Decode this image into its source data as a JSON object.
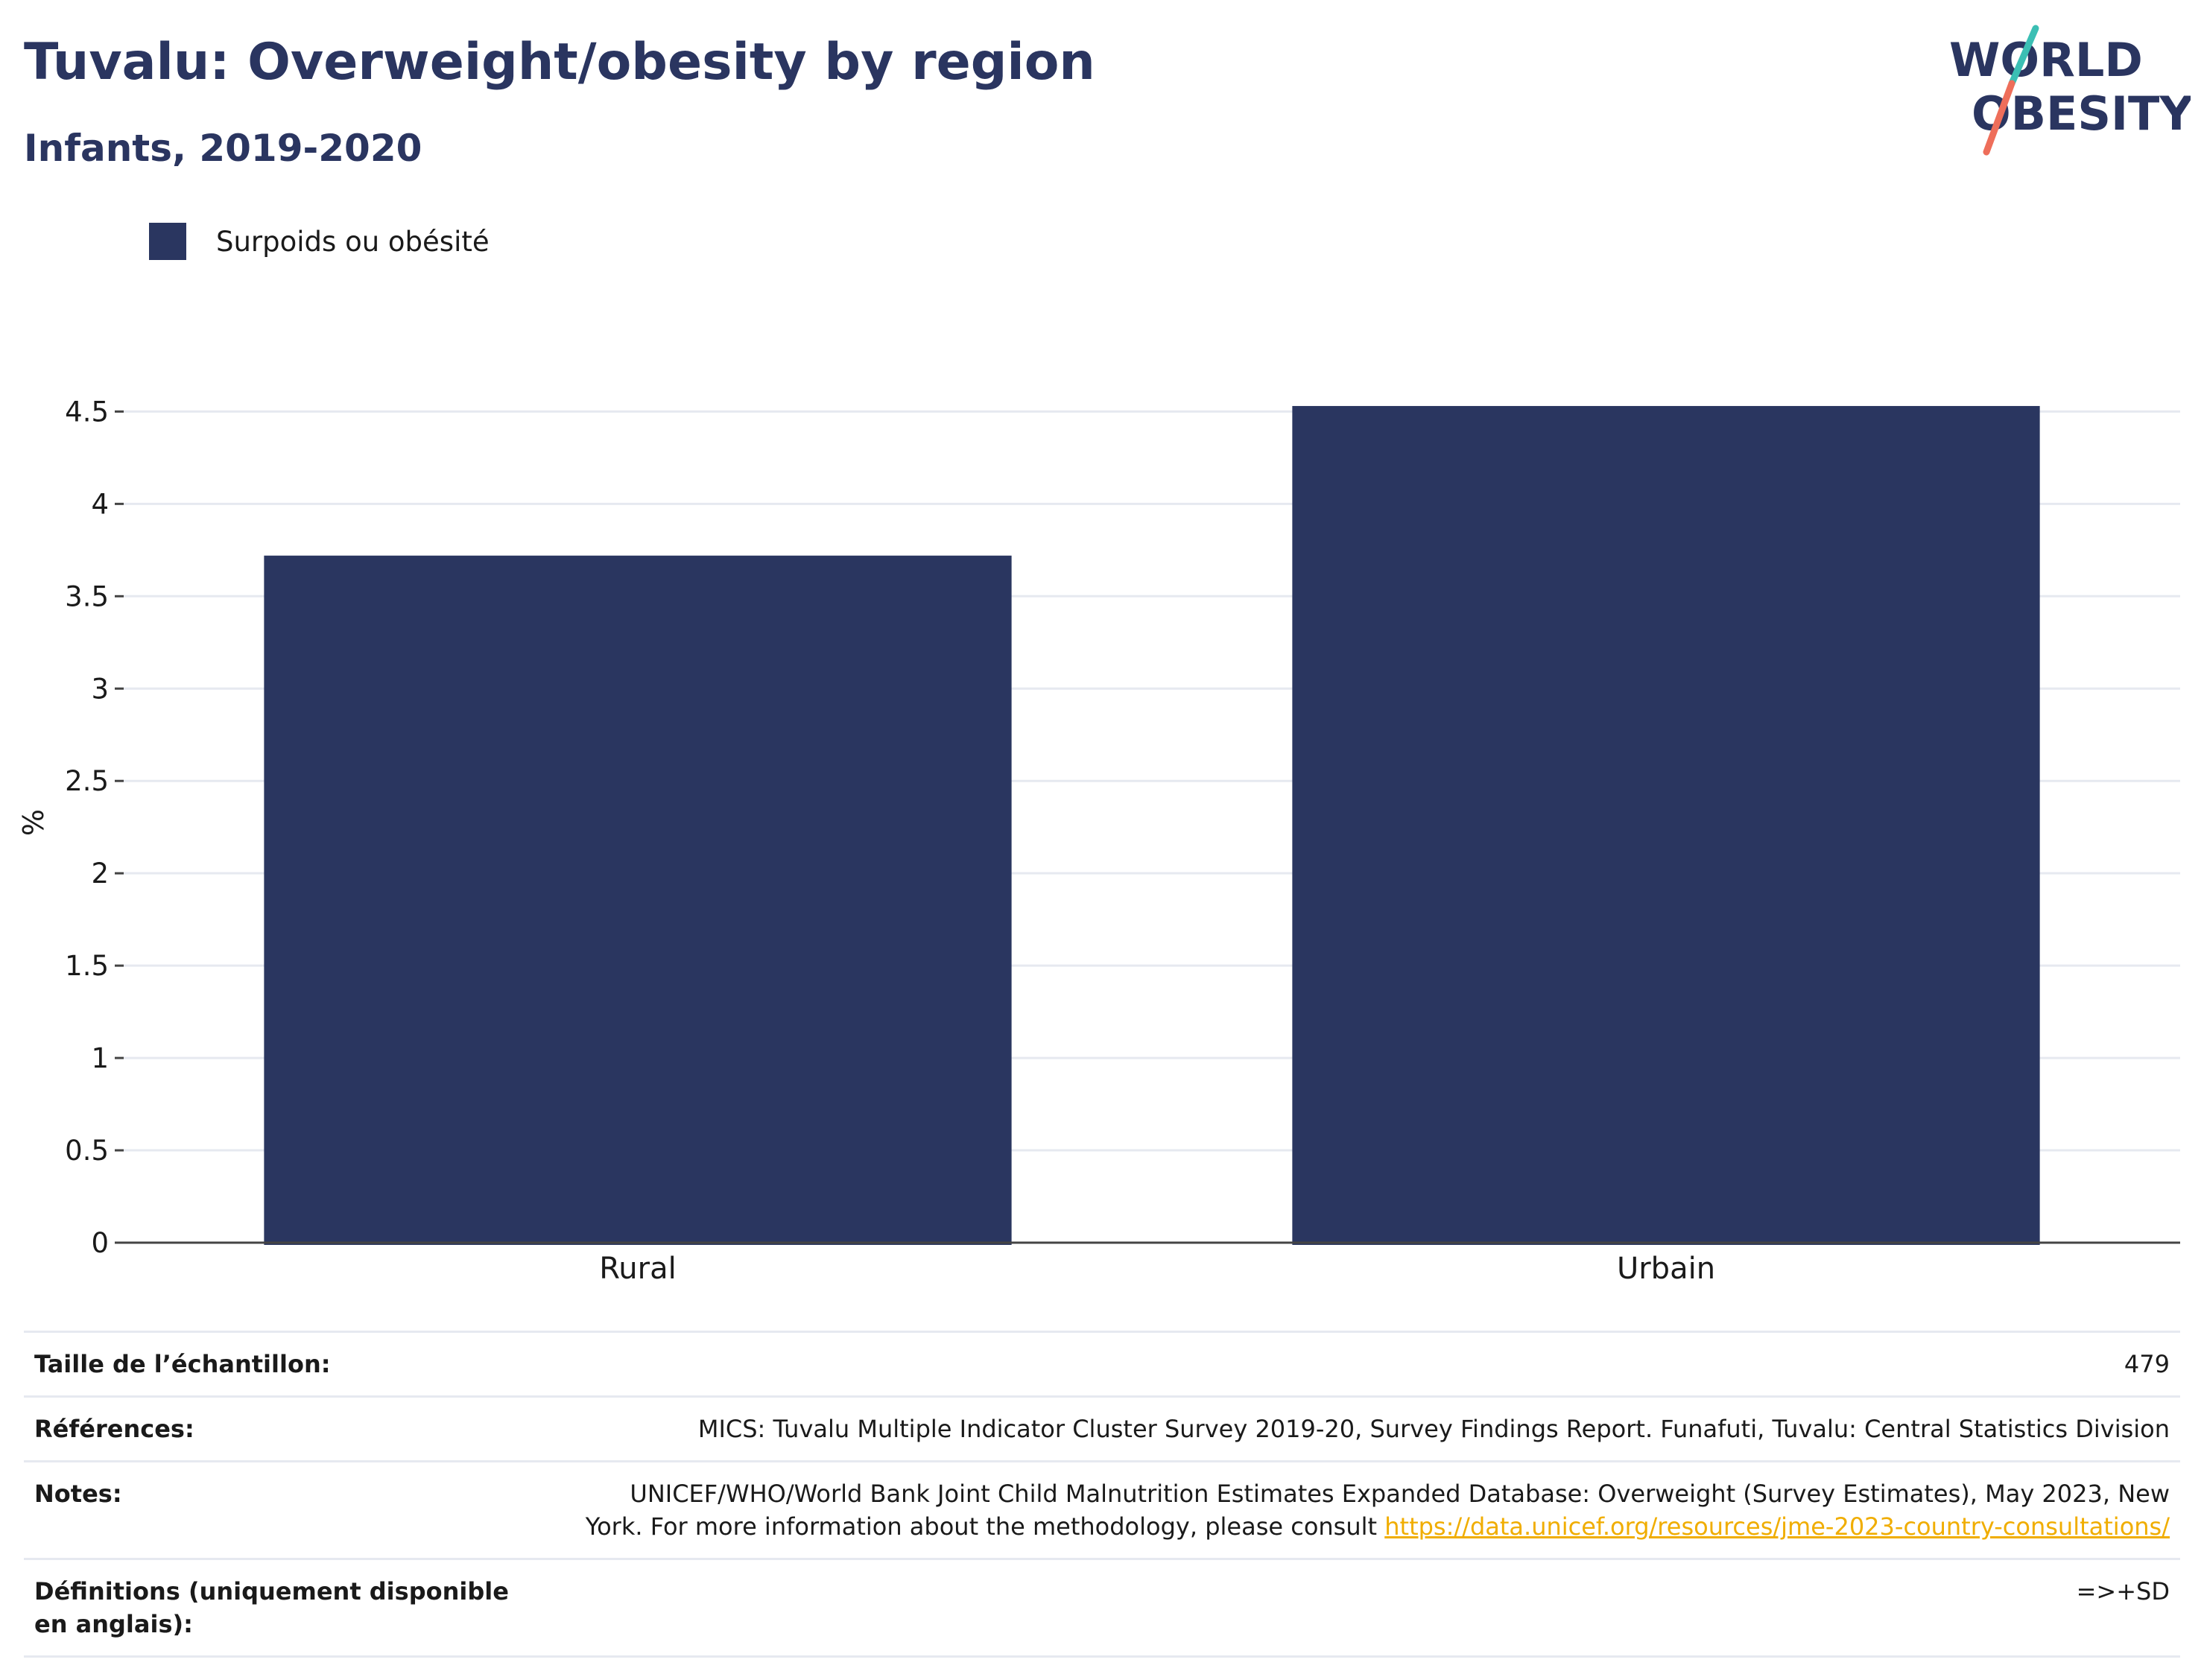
{
  "header": {
    "title": "Tuvalu: Overweight/obesity by region",
    "subtitle": "Infants, 2019-2020",
    "logo": {
      "line1": "WORLD",
      "line2": "OBESITY",
      "colors": {
        "text": "#2a3560",
        "accent_teal": "#3bbfb4",
        "accent_coral": "#ee6e5a"
      }
    }
  },
  "legend": {
    "items": [
      {
        "label": "Surpoids ou obésité",
        "color": "#2a3660"
      }
    ]
  },
  "chart_data": {
    "type": "bar",
    "categories": [
      "Rural",
      "Urbain"
    ],
    "series": [
      {
        "name": "Surpoids ou obésité",
        "values": [
          3.72,
          4.53
        ],
        "color": "#2a3660"
      }
    ],
    "xlabel": "",
    "ylabel": "%",
    "ylim": [
      0,
      4.55
    ],
    "yticks": [
      0,
      0.5,
      1,
      1.5,
      2,
      2.5,
      3,
      3.5,
      4,
      4.5
    ],
    "ytick_labels": [
      "0",
      "0.5",
      "1",
      "1.5",
      "2",
      "2.5",
      "3",
      "3.5",
      "4",
      "4.5"
    ],
    "grid": true,
    "legend_position": "top-left"
  },
  "meta": {
    "sample_size": {
      "label": "Taille de l’échantillon:",
      "value": "479"
    },
    "references": {
      "label": "Références:",
      "value": "MICS: Tuvalu Multiple Indicator Cluster Survey 2019-20, Survey Findings Report. Funafuti, Tuvalu: Central Statistics Division"
    },
    "notes": {
      "label": "Notes:",
      "line1": "UNICEF/WHO/World Bank Joint Child Malnutrition Estimates Expanded Database: Overweight (Survey Estimates), May 2023, New",
      "line2": "York. For more information about the methodology, please consult ",
      "link": "https://data.unicef.org/resources/jme-2023-country-consultations/"
    },
    "definitions": {
      "label": "Définitions (uniquement disponible en anglais):",
      "value": "=>+SD"
    }
  }
}
